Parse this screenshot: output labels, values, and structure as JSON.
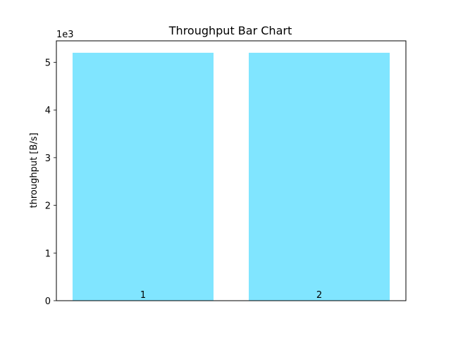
{
  "chart_data": {
    "type": "bar",
    "title": "Throughput Bar Chart",
    "xlabel": "",
    "ylabel": "throughput [B/s]",
    "y_scale_label": "1e3",
    "categories": [
      "1",
      "2"
    ],
    "values": [
      5200,
      5200
    ],
    "ylim": [
      0,
      5450
    ],
    "yticks": [
      0,
      1000,
      2000,
      3000,
      4000,
      5000
    ],
    "ytick_labels": [
      "0",
      "1",
      "2",
      "3",
      "4",
      "5"
    ],
    "bar_labels": [
      "1",
      "2"
    ],
    "bar_color": "#80e5ff",
    "grid": false,
    "legend": "none"
  }
}
